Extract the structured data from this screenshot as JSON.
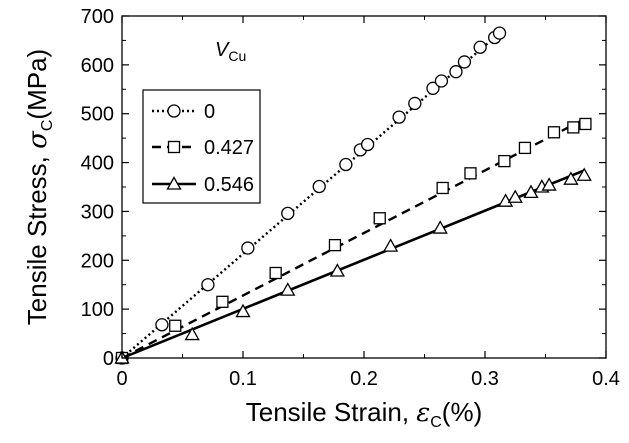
{
  "chart_data": {
    "type": "scatter",
    "xlabel": {
      "main": "Tensile Strain, ",
      "sym": "ε",
      "sub": "C",
      "unit": "(%)"
    },
    "ylabel": {
      "main": "Tensile Stress, ",
      "sym": "σ",
      "sub": "C",
      "unit": "(MPa)"
    },
    "xlim": [
      0,
      0.4
    ],
    "ylim": [
      0,
      700
    ],
    "xticks": [
      0,
      0.1,
      0.2,
      0.3,
      0.4
    ],
    "xtick_labels": [
      "0",
      "0.1",
      "0.2",
      "0.3",
      "0.4"
    ],
    "yticks": [
      0,
      100,
      200,
      300,
      400,
      500,
      600,
      700
    ],
    "ytick_labels": [
      "0",
      "100",
      "200",
      "300",
      "400",
      "500",
      "600",
      "700"
    ],
    "grid": false,
    "legend": {
      "title_main": "V",
      "title_sub": "Cu",
      "position": "upper-left"
    },
    "series": [
      {
        "name": "0",
        "marker": "circle",
        "line_style": "dotted",
        "line": [
          [
            0,
            0
          ],
          [
            0.312,
            665
          ]
        ],
        "points": [
          [
            0.0,
            0
          ],
          [
            0.033,
            68
          ],
          [
            0.071,
            150
          ],
          [
            0.104,
            225
          ],
          [
            0.137,
            296
          ],
          [
            0.163,
            351
          ],
          [
            0.185,
            396
          ],
          [
            0.197,
            426
          ],
          [
            0.203,
            437
          ],
          [
            0.229,
            493
          ],
          [
            0.242,
            521
          ],
          [
            0.257,
            552
          ],
          [
            0.264,
            567
          ],
          [
            0.276,
            586
          ],
          [
            0.283,
            606
          ],
          [
            0.296,
            636
          ],
          [
            0.308,
            656
          ],
          [
            0.312,
            665
          ]
        ]
      },
      {
        "name": "0.427",
        "marker": "square",
        "line_style": "dashed",
        "line": [
          [
            0,
            0
          ],
          [
            0.383,
            490
          ]
        ],
        "points": [
          [
            0.0,
            0
          ],
          [
            0.044,
            66
          ],
          [
            0.083,
            115
          ],
          [
            0.127,
            174
          ],
          [
            0.176,
            231
          ],
          [
            0.213,
            286
          ],
          [
            0.265,
            348
          ],
          [
            0.288,
            378
          ],
          [
            0.316,
            403
          ],
          [
            0.333,
            430
          ],
          [
            0.357,
            462
          ],
          [
            0.373,
            472
          ],
          [
            0.383,
            479
          ]
        ]
      },
      {
        "name": "0.546",
        "marker": "triangle",
        "line_style": "solid",
        "line": [
          [
            0,
            0
          ],
          [
            0.383,
            385
          ]
        ],
        "points": [
          [
            0.0,
            0
          ],
          [
            0.058,
            48
          ],
          [
            0.1,
            95
          ],
          [
            0.137,
            139
          ],
          [
            0.178,
            178
          ],
          [
            0.222,
            229
          ],
          [
            0.263,
            266
          ],
          [
            0.317,
            321
          ],
          [
            0.325,
            329
          ],
          [
            0.338,
            339
          ],
          [
            0.347,
            350
          ],
          [
            0.353,
            354
          ],
          [
            0.371,
            366
          ],
          [
            0.382,
            374
          ]
        ]
      }
    ]
  }
}
